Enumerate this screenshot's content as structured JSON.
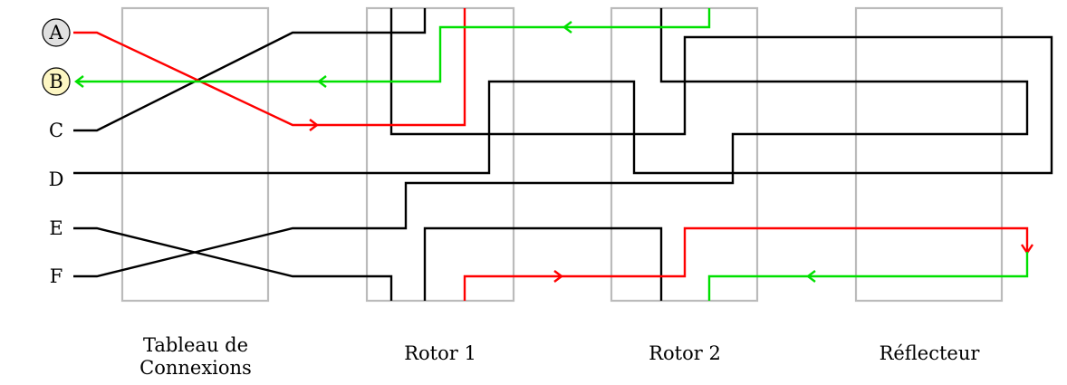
{
  "colors": {
    "box": "#bbbbbb",
    "wire": "#000000",
    "red": "#ff0000",
    "green": "#00e000",
    "a_fill": "#e0e0e0",
    "b_fill": "#fdf6c3"
  },
  "letters": [
    "A",
    "B",
    "C",
    "D",
    "E",
    "F"
  ],
  "highlighted": {
    "A": "gray",
    "B": "yellow"
  },
  "components": [
    {
      "id": "plugboard",
      "caption_lines": [
        "Tableau de",
        "Connexions"
      ]
    },
    {
      "id": "rotor1",
      "caption_lines": [
        "Rotor 1"
      ]
    },
    {
      "id": "rotor2",
      "caption_lines": [
        "Rotor 2"
      ]
    },
    {
      "id": "reflector",
      "caption_lines": [
        "Réflecteur"
      ]
    }
  ],
  "signal_path": {
    "input": "A",
    "output": "B"
  }
}
